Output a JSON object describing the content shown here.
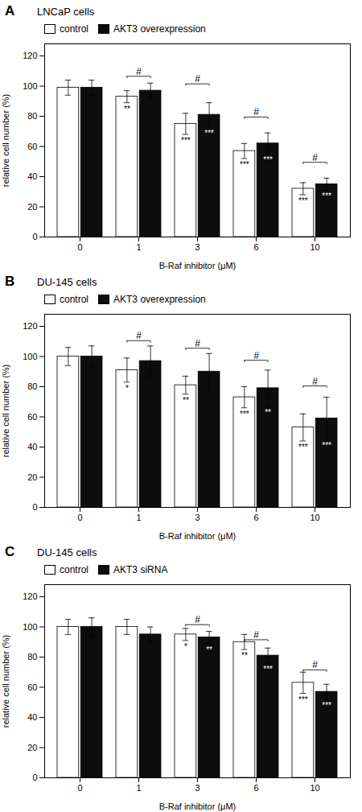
{
  "chart_data": [
    {
      "type": "bar",
      "panel_label": "A",
      "title": "LNCaP cells",
      "categories": [
        "0",
        "1",
        "3",
        "6",
        "10"
      ],
      "series": [
        {
          "name": "control",
          "color": "white",
          "values": [
            99,
            93,
            75,
            57,
            32
          ],
          "errors": [
            5,
            4,
            7,
            5,
            4
          ]
        },
        {
          "name": "AKT3 overexpression",
          "color": "#0d0d0d",
          "values": [
            99,
            97,
            81,
            62,
            35
          ],
          "errors": [
            5,
            5,
            8,
            7,
            4
          ]
        }
      ],
      "annotations": [
        {
          "text": "**",
          "category": "1",
          "series": "control"
        },
        {
          "text": "***",
          "category": "3",
          "series": "control"
        },
        {
          "text": "***",
          "category": "6",
          "series": "control"
        },
        {
          "text": "***",
          "category": "10",
          "series": "control"
        },
        {
          "text": "***",
          "category": "3",
          "series": "AKT3 overexpression"
        },
        {
          "text": "***",
          "category": "6",
          "series": "AKT3 overexpression"
        },
        {
          "text": "***",
          "category": "10",
          "series": "AKT3 overexpression"
        },
        {
          "text": "#",
          "category": "1",
          "y": 105
        },
        {
          "text": "#",
          "category": "3",
          "y": 100
        },
        {
          "text": "#",
          "category": "6",
          "y": 78
        },
        {
          "text": "#",
          "category": "10",
          "y": 48
        }
      ],
      "xlabel": "B-Raf inhibitor (μM)",
      "ylabel": "relative cell number (%)",
      "ylim": [
        0,
        128
      ],
      "yticks": [
        0,
        20,
        40,
        60,
        80,
        100,
        120
      ],
      "legend": "upper left",
      "grid": false
    },
    {
      "type": "bar",
      "panel_label": "B",
      "title": "DU-145 cells",
      "categories": [
        "0",
        "1",
        "3",
        "6",
        "10"
      ],
      "series": [
        {
          "name": "control",
          "color": "white",
          "values": [
            100,
            91,
            81,
            73,
            53
          ],
          "errors": [
            6,
            8,
            6,
            7,
            9
          ]
        },
        {
          "name": "AKT3 overexpression",
          "color": "#0d0d0d",
          "values": [
            100,
            97,
            90,
            79,
            59
          ],
          "errors": [
            7,
            10,
            12,
            12,
            14
          ]
        }
      ],
      "annotations": [
        {
          "text": "*",
          "category": "1",
          "series": "control"
        },
        {
          "text": "**",
          "category": "3",
          "series": "control"
        },
        {
          "text": "***",
          "category": "6",
          "series": "control"
        },
        {
          "text": "***",
          "category": "10",
          "series": "control"
        },
        {
          "text": "**",
          "category": "6",
          "series": "AKT3 overexpression"
        },
        {
          "text": "***",
          "category": "10",
          "series": "AKT3 overexpression"
        },
        {
          "text": "#",
          "category": "1",
          "y": 109
        },
        {
          "text": "#",
          "category": "3",
          "y": 104
        },
        {
          "text": "#",
          "category": "6",
          "y": 96
        },
        {
          "text": "#",
          "category": "10",
          "y": 79
        }
      ],
      "xlabel": "B-Raf inhibitor (μM)",
      "ylabel": "relative cell number (%)",
      "ylim": [
        0,
        128
      ],
      "yticks": [
        0,
        20,
        40,
        60,
        80,
        100,
        120
      ],
      "legend": "upper left",
      "grid": false
    },
    {
      "type": "bar",
      "panel_label": "C",
      "title": "DU-145 cells",
      "categories": [
        "0",
        "1",
        "3",
        "6",
        "10"
      ],
      "series": [
        {
          "name": "control",
          "color": "white",
          "values": [
            100,
            100,
            95,
            90,
            63
          ],
          "errors": [
            5,
            5,
            4,
            5,
            7
          ]
        },
        {
          "name": "AKT3 siRNA",
          "color": "#0d0d0d",
          "values": [
            100,
            95,
            93,
            81,
            57
          ],
          "errors": [
            6,
            5,
            4,
            5,
            5
          ]
        }
      ],
      "annotations": [
        {
          "text": "*",
          "category": "3",
          "series": "control"
        },
        {
          "text": "**",
          "category": "6",
          "series": "control"
        },
        {
          "text": "***",
          "category": "10",
          "series": "control"
        },
        {
          "text": "**",
          "category": "3",
          "series": "AKT3 siRNA"
        },
        {
          "text": "***",
          "category": "6",
          "series": "AKT3 siRNA"
        },
        {
          "text": "***",
          "category": "10",
          "series": "AKT3 siRNA"
        },
        {
          "text": "#",
          "category": "3",
          "y": 100
        },
        {
          "text": "#",
          "category": "6",
          "y": 90
        },
        {
          "text": "#",
          "category": "10",
          "y": 70
        }
      ],
      "xlabel": "B-Raf inhibitor (μM)",
      "ylabel": "relative cell number (%)",
      "ylim": [
        0,
        128
      ],
      "yticks": [
        0,
        20,
        40,
        60,
        80,
        100,
        120
      ],
      "legend": "upper left",
      "grid": false
    }
  ]
}
